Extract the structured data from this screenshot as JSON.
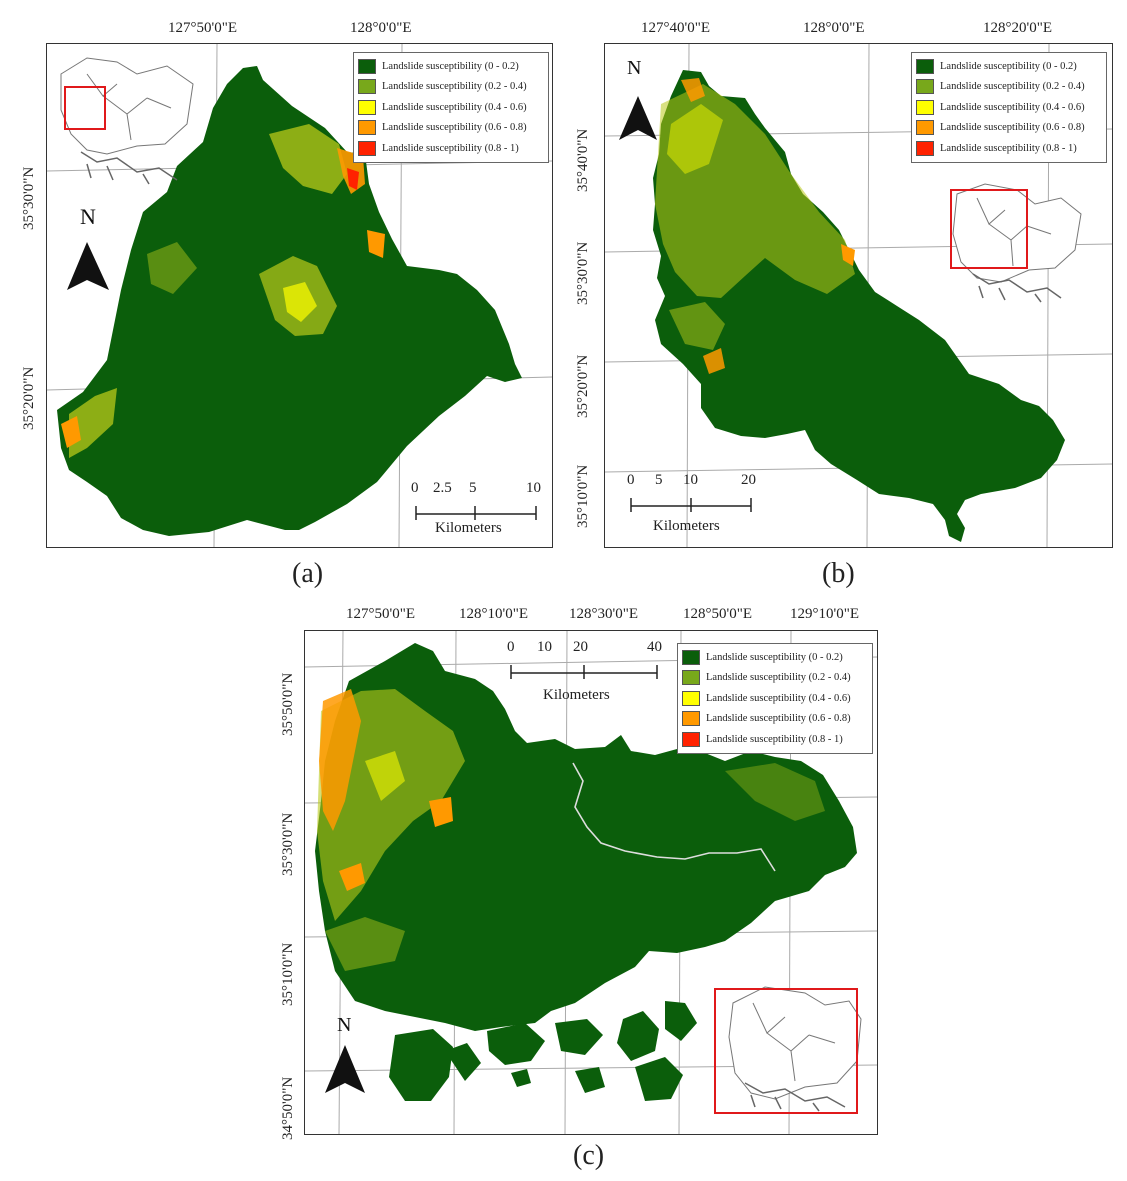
{
  "legend_items": [
    {
      "label": "Landslide susceptibility (0 - 0.2)",
      "color": "#0b5e0b"
    },
    {
      "label": "Landslide susceptibility (0.2 - 0.4)",
      "color": "#78a81b"
    },
    {
      "label": "Landslide susceptibility (0.4 - 0.6)",
      "color": "#ffff00"
    },
    {
      "label": "Landslide susceptibility (0.6 - 0.8)",
      "color": "#ff9900"
    },
    {
      "label": "Landslide susceptibility (0.8 - 1)",
      "color": "#ff2200"
    }
  ],
  "north_label": "N",
  "units_label": "Kilometers",
  "panels": {
    "a": {
      "caption": "(a)",
      "lon_ticks": [
        "127°50'0\"E",
        "128°0'0\"E"
      ],
      "lat_ticks": [
        "35°30'0\"N",
        "35°20'0\"N"
      ],
      "scale_labels": [
        "0",
        "2.5",
        "5",
        "10"
      ]
    },
    "b": {
      "caption": "(b)",
      "lon_ticks": [
        "127°40'0\"E",
        "128°0'0\"E",
        "128°20'0\"E"
      ],
      "lat_ticks": [
        "35°40'0\"N",
        "35°30'0\"N",
        "35°20'0\"N",
        "35°10'0\"N"
      ],
      "scale_labels": [
        "0",
        "5",
        "10",
        "20"
      ]
    },
    "c": {
      "caption": "(c)",
      "lon_ticks": [
        "127°50'0\"E",
        "128°10'0\"E",
        "128°30'0\"E",
        "128°50'0\"E",
        "129°10'0\"E"
      ],
      "lat_ticks": [
        "35°50'0\"N",
        "35°30'0\"N",
        "35°10'0\"N",
        "34°50'0\"N"
      ],
      "scale_labels": [
        "0",
        "10",
        "20",
        "40"
      ]
    }
  },
  "colors": {
    "frame": "#333333",
    "grid": "#aaaaaa",
    "inset_highlight": "#e0191b",
    "river": "#dddddd"
  }
}
